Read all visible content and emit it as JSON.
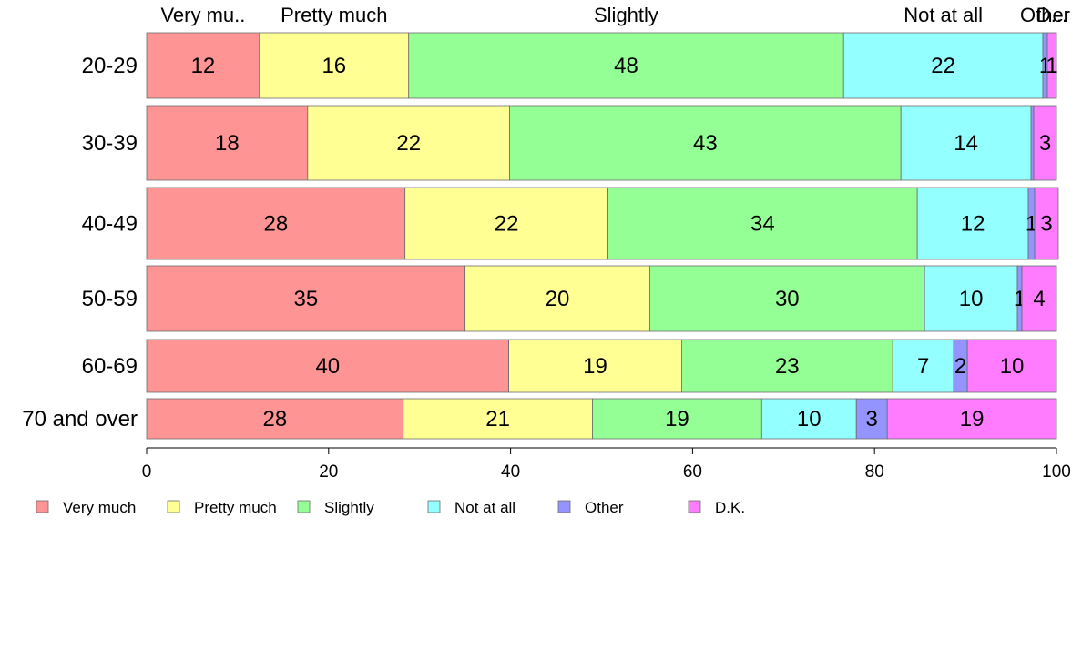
{
  "chart_data": {
    "type": "bar",
    "orientation": "horizontal",
    "stacked": true,
    "categories": [
      "20-29",
      "30-39",
      "40-49",
      "50-59",
      "60-69",
      "70 and over"
    ],
    "series": [
      {
        "name": "Very much",
        "color": "#ff9494",
        "values": [
          12.4,
          17.7,
          28.4,
          35.0,
          39.8,
          28.2
        ]
      },
      {
        "name": "Pretty much",
        "color": "#ffff94",
        "values": [
          16.4,
          22.2,
          22.3,
          20.3,
          19.0,
          20.8
        ]
      },
      {
        "name": "Slightly",
        "color": "#94ff94",
        "values": [
          47.8,
          43.0,
          34.0,
          30.2,
          23.2,
          18.6
        ]
      },
      {
        "name": "Not at all",
        "color": "#94ffff",
        "values": [
          21.9,
          14.3,
          12.2,
          10.2,
          6.7,
          10.4
        ]
      },
      {
        "name": "Other",
        "color": "#9494ff",
        "values": [
          0.5,
          0.3,
          0.7,
          0.5,
          1.5,
          3.4
        ]
      },
      {
        "name": "D.K.",
        "color": "#ff7bff",
        "values": [
          1.0,
          2.5,
          2.6,
          3.8,
          9.8,
          18.6
        ]
      }
    ],
    "top_labels": [
      "Very mu..",
      "Pretty much",
      "Slightly",
      "Not at all",
      "Other",
      "D..."
    ],
    "segment_labels": [
      [
        "12",
        "16",
        "48",
        "22",
        "1",
        "1"
      ],
      [
        "18",
        "22",
        "43",
        "14",
        "",
        "3"
      ],
      [
        "28",
        "22",
        "34",
        "12",
        "1",
        "3"
      ],
      [
        "35",
        "20",
        "30",
        "10",
        "1",
        "4"
      ],
      [
        "40",
        "19",
        "23",
        "7",
        "2",
        "10"
      ],
      [
        "28",
        "21",
        "19",
        "10",
        "3",
        "19"
      ]
    ],
    "xlim": [
      0,
      100
    ],
    "xticks": [
      0,
      20,
      40,
      60,
      80,
      100
    ],
    "grid": false,
    "legend": "bottom-left"
  }
}
